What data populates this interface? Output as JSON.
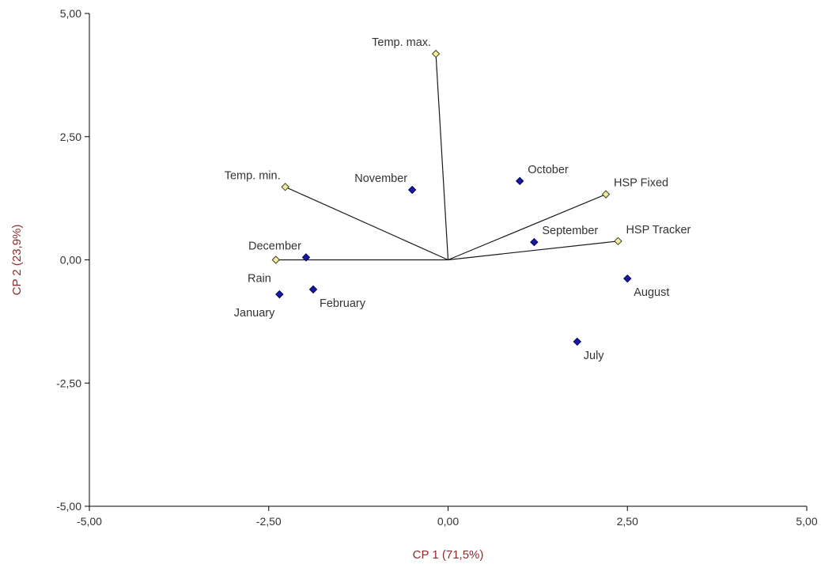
{
  "chart_data": {
    "type": "scatter",
    "title": "",
    "xlabel": "CP 1 (71,5%)",
    "ylabel": "CP 2 (23,9%)",
    "xlim": [
      -5,
      5
    ],
    "ylim": [
      -5,
      5
    ],
    "x_ticks": [
      {
        "value": -5,
        "label": "-5,00"
      },
      {
        "value": -2.5,
        "label": "-2,50"
      },
      {
        "value": 0,
        "label": "0,00"
      },
      {
        "value": 2.5,
        "label": "2,50"
      },
      {
        "value": 5,
        "label": "5,00"
      }
    ],
    "y_ticks": [
      {
        "value": -5,
        "label": "-5,00"
      },
      {
        "value": -2.5,
        "label": "-2,50"
      },
      {
        "value": 0,
        "label": "0,00"
      },
      {
        "value": 2.5,
        "label": "2,50"
      },
      {
        "value": 5,
        "label": "5,00"
      }
    ],
    "grid": false,
    "legend": "none",
    "colors": {
      "observation_fill": "#1a1aa0",
      "observation_stroke": "#000060",
      "variable_fill": "#f2eda0",
      "variable_stroke": "#404020",
      "vector_line": "#1a1a1a",
      "axis_title": "#8b2b2b",
      "axis": "#000000"
    },
    "series": [
      {
        "kind": "observations",
        "points": [
          {
            "label": "October",
            "x": 1.0,
            "y": 1.6,
            "label_anchor": "upper-right"
          },
          {
            "label": "November",
            "x": -0.5,
            "y": 1.42,
            "label_anchor": "upper-left"
          },
          {
            "label": "September",
            "x": 1.2,
            "y": 0.36,
            "label_anchor": "upper-right"
          },
          {
            "label": "August",
            "x": 2.5,
            "y": -0.38,
            "label_anchor": "lower-right"
          },
          {
            "label": "July",
            "x": 1.8,
            "y": -1.66,
            "label_anchor": "lower-right"
          },
          {
            "label": "December",
            "x": -1.98,
            "y": 0.05,
            "label_anchor": "upper-left"
          },
          {
            "label": "January",
            "x": -2.35,
            "y": -0.7,
            "label_anchor": "lower-left"
          },
          {
            "label": "February",
            "x": -1.88,
            "y": -0.6,
            "label_anchor": "lower-right"
          }
        ]
      },
      {
        "kind": "variables",
        "points": [
          {
            "label": "Temp. max.",
            "x": -0.17,
            "y": 4.18,
            "label_anchor": "upper-left"
          },
          {
            "label": "Temp. min.",
            "x": -2.27,
            "y": 1.48,
            "label_anchor": "upper-left"
          },
          {
            "label": "HSP Fixed",
            "x": 2.2,
            "y": 1.33,
            "label_anchor": "upper-right"
          },
          {
            "label": "HSP Tracker",
            "x": 2.37,
            "y": 0.38,
            "label_anchor": "upper-right"
          },
          {
            "label": "Rain",
            "x": -2.4,
            "y": 0.0,
            "label_anchor": "lower-left"
          }
        ]
      }
    ]
  }
}
